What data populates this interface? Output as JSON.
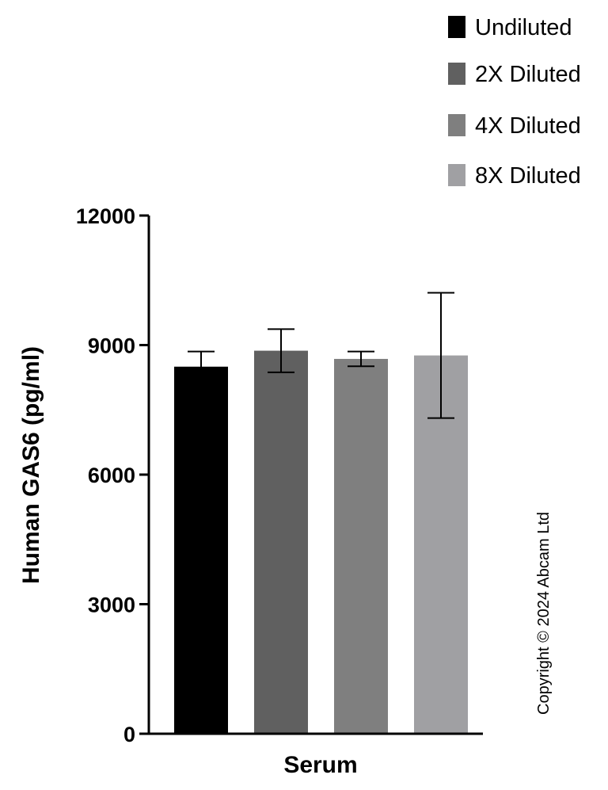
{
  "chart_data": {
    "type": "bar",
    "title": "",
    "categories": [
      "Serum"
    ],
    "xlabel": "Serum",
    "ylabel": "Human GAS6 (pg/ml)",
    "ylim": [
      0,
      12000
    ],
    "yticks": [
      0,
      3000,
      6000,
      9000,
      12000
    ],
    "series": [
      {
        "name": "Undiluted",
        "values": [
          8500
        ],
        "error": [
          350
        ],
        "color": "#000000"
      },
      {
        "name": "2X Diluted",
        "values": [
          8870
        ],
        "error": [
          500
        ],
        "color": "#606060"
      },
      {
        "name": "4X Diluted",
        "values": [
          8680
        ],
        "error": [
          170
        ],
        "color": "#7f7f7f"
      },
      {
        "name": "8X Diluted",
        "values": [
          8760
        ],
        "error": [
          1450
        ],
        "color": "#a0a0a3"
      }
    ],
    "legend_position": "top-right",
    "grid": false
  },
  "copyright": "Copyright © 2024 Abcam Ltd"
}
